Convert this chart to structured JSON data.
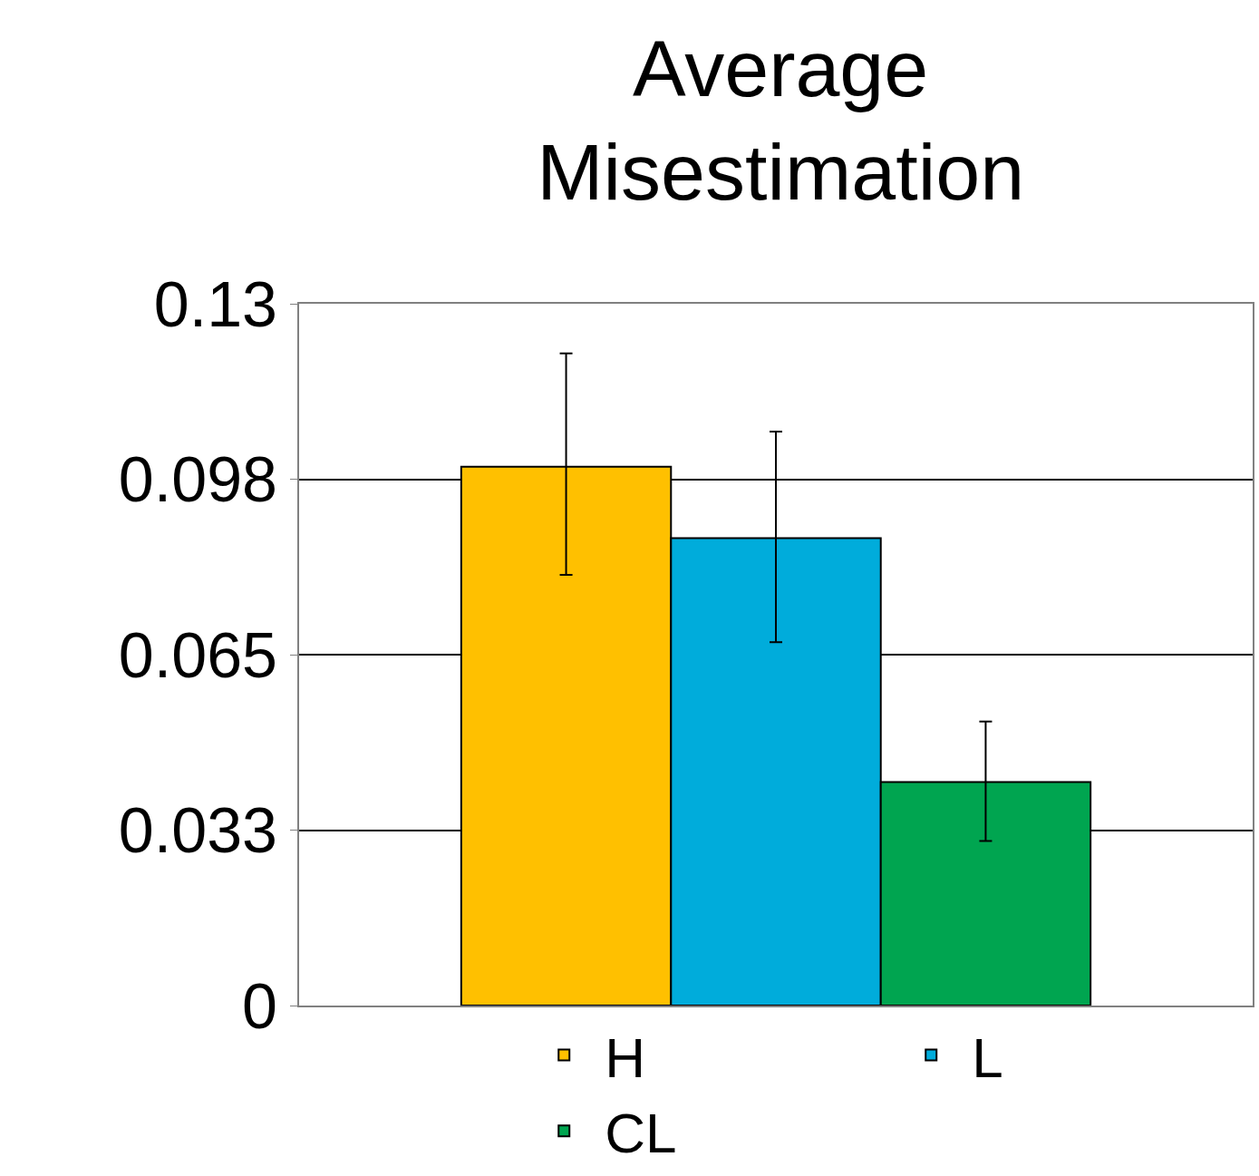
{
  "chart_data": {
    "type": "bar",
    "title": "Average\nMisestimation",
    "categories": [
      null
    ],
    "series": [
      {
        "name": "H",
        "color": "#ffc000",
        "values": [
          0.0998
        ],
        "errors": [
          [
            0.0798,
            0.1208
          ]
        ]
      },
      {
        "name": "L",
        "color": "#00acdb",
        "values": [
          0.0866
        ],
        "errors": [
          [
            0.0673,
            0.1063
          ]
        ]
      },
      {
        "name": "CL",
        "color": "#00a550",
        "values": [
          0.0414
        ],
        "errors": [
          [
            0.0305,
            0.0526
          ]
        ]
      }
    ],
    "ylim": [
      0,
      0.13
    ],
    "yticks": [
      0,
      {
        "value": 0.0325,
        "label": "0.033"
      },
      0.065,
      {
        "value": 0.0975,
        "label": "0.098"
      },
      0.13
    ],
    "grid": "y",
    "legend": "bottom"
  }
}
